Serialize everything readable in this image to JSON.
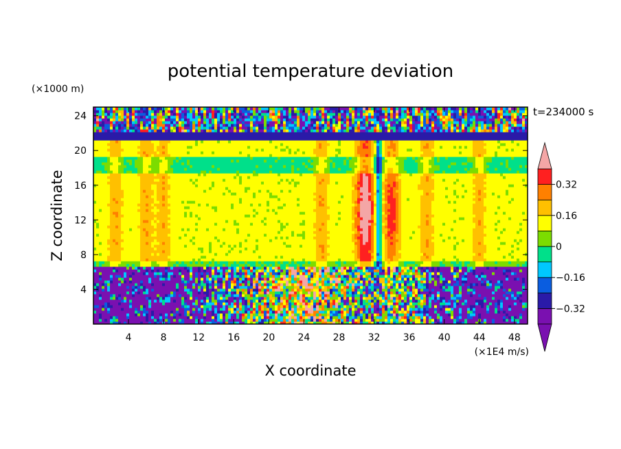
{
  "chart_data": {
    "type": "heatmap",
    "title": "potential temperature deviation",
    "xlabel": "X coordinate",
    "ylabel": "Z coordinate",
    "x_units": "(×1E4 m/s)",
    "y_units": "(×1000 m)",
    "time_label": "t=234000 s",
    "xlim": [
      0,
      49.5
    ],
    "ylim": [
      0,
      25
    ],
    "x_ticks": [
      4,
      8,
      12,
      16,
      20,
      24,
      28,
      32,
      36,
      40,
      44,
      48
    ],
    "y_ticks": [
      4,
      8,
      12,
      16,
      20,
      24
    ],
    "colorbar": {
      "levels": [
        -0.4,
        -0.32,
        -0.24,
        -0.16,
        -0.08,
        0,
        0.08,
        0.16,
        0.24,
        0.32,
        0.4
      ],
      "labeled_values": [
        0.32,
        0.16,
        0,
        -0.16,
        -0.32
      ],
      "labels": [
        "0.32",
        "0.16",
        "0",
        "−0.16",
        "−0.32"
      ],
      "colors": [
        "#7a10b0",
        "#2a1aa8",
        "#0a5de0",
        "#00c8ff",
        "#00e08a",
        "#7cdc00",
        "#ffff00",
        "#ffc000",
        "#ff8000",
        "#ff2020",
        "#f4a6a6"
      ],
      "extend": "both"
    },
    "regions": {
      "top_layer_z": [
        22,
        25
      ],
      "tropopause_z": 21.8,
      "mid_layer_z": [
        6.5,
        21.8
      ],
      "lower_layer_z": [
        0,
        6.5
      ],
      "mid_layer_value": 0.02,
      "strong_warm_column_x": 31,
      "warm_column_x": 34,
      "cold_column_x": 32.5,
      "weak_warm_columns_x": [
        2.5,
        6,
        8,
        26,
        44,
        38
      ]
    }
  }
}
